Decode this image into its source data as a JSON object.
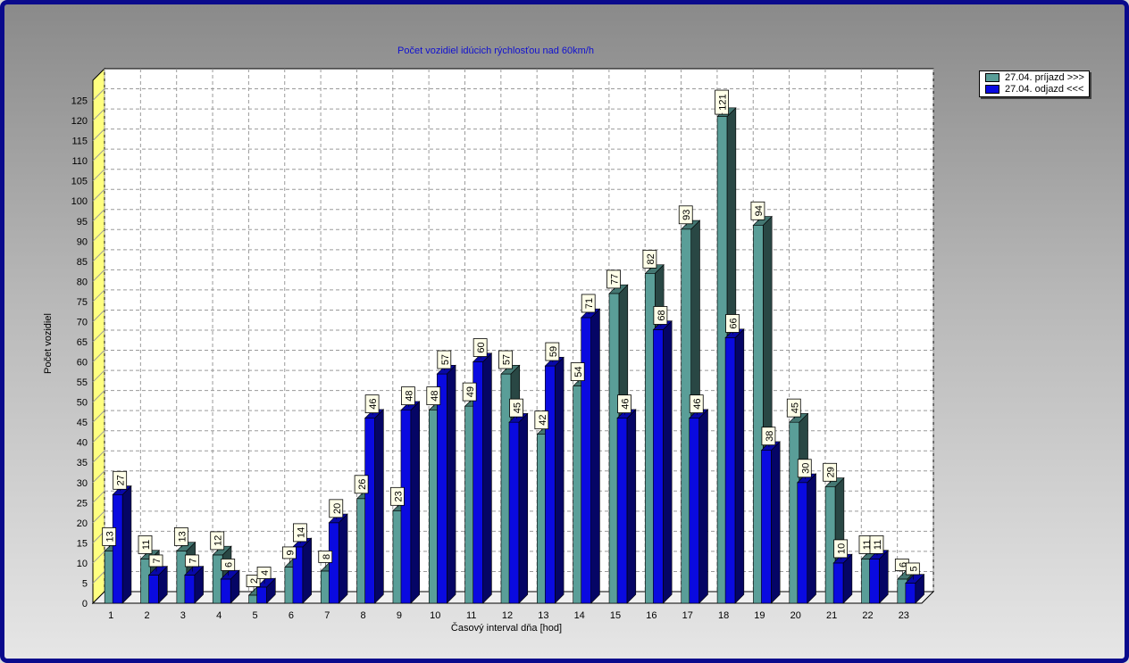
{
  "chart_data": {
    "type": "bar",
    "title": "Počet vozidiel idúcich rýchlosťou nad 60km/h",
    "xlabel": "Časový interval dňa [hod]",
    "ylabel": "Počet vozidiel",
    "ylim": [
      0,
      130
    ],
    "yticks": [
      0,
      5,
      10,
      15,
      20,
      25,
      30,
      35,
      40,
      45,
      50,
      55,
      60,
      65,
      70,
      75,
      80,
      85,
      90,
      95,
      100,
      105,
      110,
      115,
      120,
      125
    ],
    "categories": [
      "1",
      "2",
      "3",
      "4",
      "5",
      "6",
      "7",
      "8",
      "9",
      "10",
      "11",
      "12",
      "13",
      "14",
      "15",
      "16",
      "17",
      "18",
      "19",
      "20",
      "21",
      "22",
      "23"
    ],
    "series": [
      {
        "name": "27.04.  príjazd >>>",
        "color": "#5a9e98",
        "values": [
          13,
          11,
          13,
          12,
          2,
          9,
          8,
          26,
          23,
          48,
          49,
          57,
          42,
          54,
          77,
          82,
          93,
          121,
          94,
          45,
          29,
          11,
          6
        ]
      },
      {
        "name": "27.04.  odjazd <<<",
        "color": "#0a0ae0",
        "values": [
          27,
          7,
          7,
          6,
          4,
          14,
          20,
          46,
          48,
          57,
          60,
          45,
          59,
          71,
          46,
          68,
          46,
          66,
          38,
          30,
          10,
          11,
          5
        ]
      }
    ],
    "grid": true,
    "legend_position": "top-right",
    "three_d": true
  }
}
